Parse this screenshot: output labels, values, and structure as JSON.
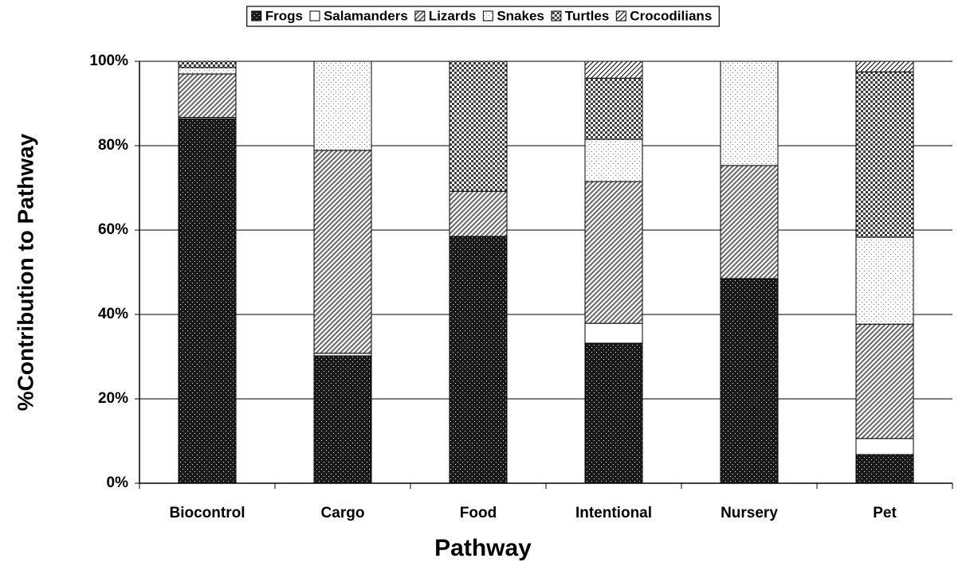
{
  "chart_data": {
    "type": "stacked-bar",
    "x_label": "Pathway",
    "y_label": "%Contribution to Pathway",
    "categories": [
      "Biocontrol",
      "Cargo",
      "Food",
      "Intentional",
      "Nursery",
      "Pet"
    ],
    "series": [
      {
        "name": "Frogs",
        "color": "#1a1a1a",
        "values": [
          86.4,
          30.2,
          58.5,
          33.2,
          48.5,
          6.8
        ]
      },
      {
        "name": "Salamanders",
        "color": "#ffffff",
        "values": [
          0.3,
          0.6,
          0,
          4.7,
          0,
          3.8
        ]
      },
      {
        "name": "Lizards",
        "color": "#6e6e6e",
        "values": [
          10.3,
          48.1,
          10.7,
          33.6,
          26.8,
          27.1
        ]
      },
      {
        "name": "Snakes",
        "color": "#e6e6e6",
        "values": [
          1.5,
          21.1,
          0,
          10.0,
          24.7,
          20.6
        ]
      },
      {
        "name": "Turtles",
        "color": "#3c3c3c",
        "values": [
          1.5,
          0,
          30.8,
          14.5,
          0,
          39.2
        ]
      },
      {
        "name": "Crocodilians",
        "color": "#a0a0a0",
        "values": [
          0,
          0,
          0,
          4.0,
          0,
          2.5
        ]
      }
    ],
    "ylim": [
      0,
      100
    ],
    "yticks": [
      {
        "value": 0,
        "label": "0%"
      },
      {
        "value": 20,
        "label": "20%"
      },
      {
        "value": 40,
        "label": "40%"
      },
      {
        "value": 60,
        "label": "60%"
      },
      {
        "value": 80,
        "label": "80%"
      },
      {
        "value": 100,
        "label": "100%"
      }
    ],
    "grid": true,
    "legend": "top"
  }
}
